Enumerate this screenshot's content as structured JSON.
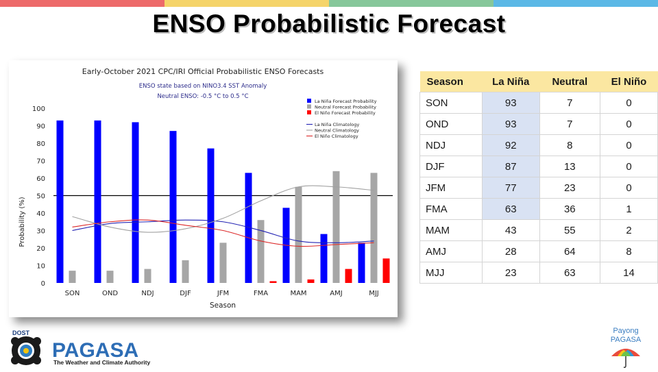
{
  "header": {
    "stripe_colors": [
      "#ed6a6a",
      "#f5d46a",
      "#86c79a",
      "#5bb8e6"
    ],
    "title": "ENSO Probabilistic Forecast"
  },
  "chart_data": {
    "type": "bar",
    "title": "Early-October 2021 CPC/IRI Official Probabilistic ENSO Forecasts",
    "subtitle_line1": "ENSO state based on NINO3.4 SST Anomaly",
    "subtitle_line2": "Neutral ENSO: -0.5 °C to 0.5 °C",
    "xlabel": "Season",
    "ylabel": "Probability (%)",
    "ylim": [
      0,
      100
    ],
    "yticks": [
      0,
      10,
      20,
      30,
      40,
      50,
      60,
      70,
      80,
      90,
      100
    ],
    "reference_line": 50,
    "categories": [
      "SON",
      "OND",
      "NDJ",
      "DJF",
      "JFM",
      "FMA",
      "MAM",
      "AMJ",
      "MJJ"
    ],
    "series": [
      {
        "name": "La Niña Forecast Probability",
        "color": "#0000ff",
        "values": [
          93,
          93,
          92,
          87,
          77,
          63,
          43,
          28,
          23
        ]
      },
      {
        "name": "Neutral Forecast Probability",
        "color": "#a6a6a6",
        "values": [
          7,
          7,
          8,
          13,
          23,
          36,
          55,
          64,
          63
        ]
      },
      {
        "name": "El Niño Forecast Probability",
        "color": "#ff0000",
        "values": [
          0,
          0,
          0,
          0,
          0,
          1,
          2,
          8,
          14
        ]
      }
    ],
    "climatology": [
      {
        "name": "La Niña Climatology",
        "color": "#2323b4",
        "values": [
          30,
          34,
          35,
          36,
          35,
          30,
          24,
          23,
          24
        ]
      },
      {
        "name": "Neutral Climatology",
        "color": "#a0a0a0",
        "values": [
          38,
          32,
          29,
          31,
          37,
          47,
          55,
          55,
          53
        ]
      },
      {
        "name": "El Niño Climatology",
        "color": "#dc2828",
        "values": [
          32,
          35,
          36,
          33,
          30,
          24,
          21,
          22,
          23
        ]
      }
    ],
    "legend_position": "top-right"
  },
  "table": {
    "headers": [
      "Season",
      "La Niña",
      "Neutral",
      "El Niño"
    ],
    "rows": [
      [
        "SON",
        "93",
        "7",
        "0"
      ],
      [
        "OND",
        "93",
        "7",
        "0"
      ],
      [
        "NDJ",
        "92",
        "8",
        "0"
      ],
      [
        "DJF",
        "87",
        "13",
        "0"
      ],
      [
        "JFM",
        "77",
        "23",
        "0"
      ],
      [
        "FMA",
        "63",
        "36",
        "1"
      ],
      [
        "MAM",
        "43",
        "55",
        "2"
      ],
      [
        "AMJ",
        "28",
        "64",
        "8"
      ],
      [
        "MJJ",
        "23",
        "63",
        "14"
      ]
    ],
    "highlight_rows": 6,
    "highlight_color": "#d9e2f3",
    "header_color": "#fbe7a1"
  },
  "logos": {
    "left_top": "DOST",
    "left_main": "PAGASA",
    "left_tagline": "The Weather and Climate Authority",
    "right_line1": "Payong",
    "right_line2": "PAGASA"
  }
}
